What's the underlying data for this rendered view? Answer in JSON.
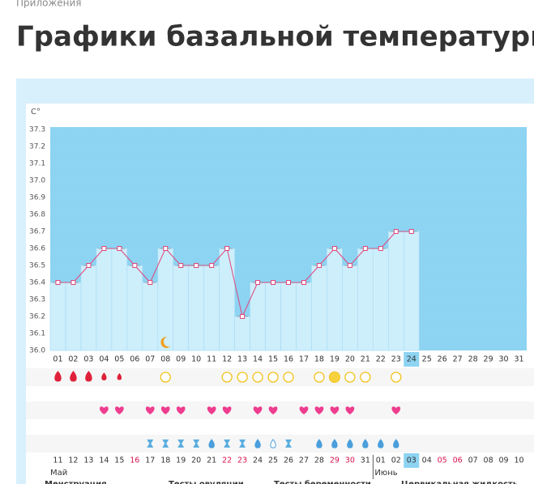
{
  "breadcrumb": "Приложения",
  "title": "Графики базальной температуры",
  "chart_data": {
    "type": "line",
    "y_label": "C°",
    "categories": [
      "01",
      "02",
      "03",
      "04",
      "05",
      "06",
      "07",
      "08",
      "09",
      "10",
      "11",
      "12",
      "13",
      "14",
      "15",
      "16",
      "17",
      "18",
      "19",
      "20",
      "21",
      "22",
      "23",
      "24",
      "25",
      "26",
      "27",
      "28",
      "29",
      "30",
      "31"
    ],
    "values": [
      36.4,
      36.4,
      36.5,
      36.6,
      36.6,
      36.5,
      36.4,
      36.6,
      36.5,
      36.5,
      36.5,
      36.6,
      36.2,
      36.4,
      36.4,
      36.4,
      36.4,
      36.5,
      36.6,
      36.5,
      36.6,
      36.6,
      36.7,
      36.7,
      null,
      null,
      null,
      null,
      null,
      null,
      null
    ],
    "color": "#e0457b",
    "ylim": [
      36.0,
      37.3
    ],
    "yticks": [
      {
        "value": 36,
        "label": "36.0"
      },
      36.1,
      36.2,
      36.3,
      36.4,
      36.5,
      36.6,
      36.7,
      36.8,
      36.9,
      {
        "value": 37,
        "label": "37.0"
      },
      37.1,
      37.2,
      37.3
    ],
    "dates": [
      "11",
      "12",
      "13",
      "14",
      "15",
      "16",
      "17",
      "18",
      "19",
      "20",
      "21",
      "22",
      "23",
      "24",
      "25",
      "26",
      "27",
      "28",
      "29",
      "30",
      "31",
      "01",
      "02",
      "03",
      "04",
      "05",
      "06",
      "07",
      "08",
      "09",
      "10"
    ],
    "months": [
      "Май",
      "Июнь"
    ]
  },
  "legend": [
    "Менструация",
    "Тесты овуляции",
    "Тесты беременности",
    "Цервикальная жидкость"
  ]
}
